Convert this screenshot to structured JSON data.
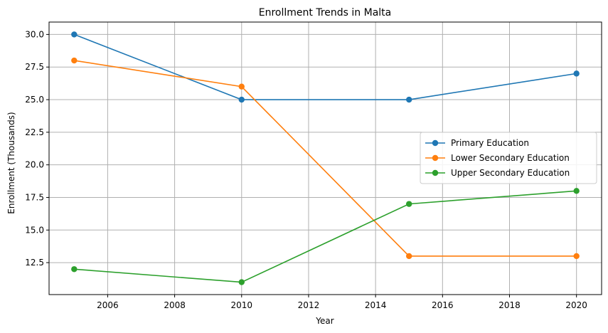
{
  "chart_data": {
    "type": "line",
    "title": "Enrollment Trends in Malta",
    "xlabel": "Year",
    "ylabel": "Enrollment (Thousands)",
    "x": [
      2005,
      2010,
      2015,
      2020
    ],
    "xlim": [
      2004.25,
      2020.75
    ],
    "ylim": [
      10.05,
      30.95
    ],
    "xticks": [
      2006,
      2008,
      2010,
      2012,
      2014,
      2016,
      2018,
      2020
    ],
    "xtick_labels": [
      "2006",
      "2008",
      "2010",
      "2012",
      "2014",
      "2016",
      "2018",
      "2020"
    ],
    "yticks": [
      12.5,
      15.0,
      17.5,
      20.0,
      22.5,
      25.0,
      27.5,
      30.0
    ],
    "ytick_labels": [
      "12.5",
      "15.0",
      "17.5",
      "20.0",
      "22.5",
      "25.0",
      "27.5",
      "30.0"
    ],
    "grid": true,
    "legend_position": "center-right",
    "series": [
      {
        "name": "Primary Education",
        "values": [
          30,
          25,
          25,
          27
        ],
        "color": "#1f77b4"
      },
      {
        "name": "Lower Secondary Education",
        "values": [
          28,
          26,
          13,
          13
        ],
        "color": "#ff7f0e"
      },
      {
        "name": "Upper Secondary Education",
        "values": [
          12,
          11,
          17,
          18
        ],
        "color": "#2ca02c"
      }
    ]
  }
}
